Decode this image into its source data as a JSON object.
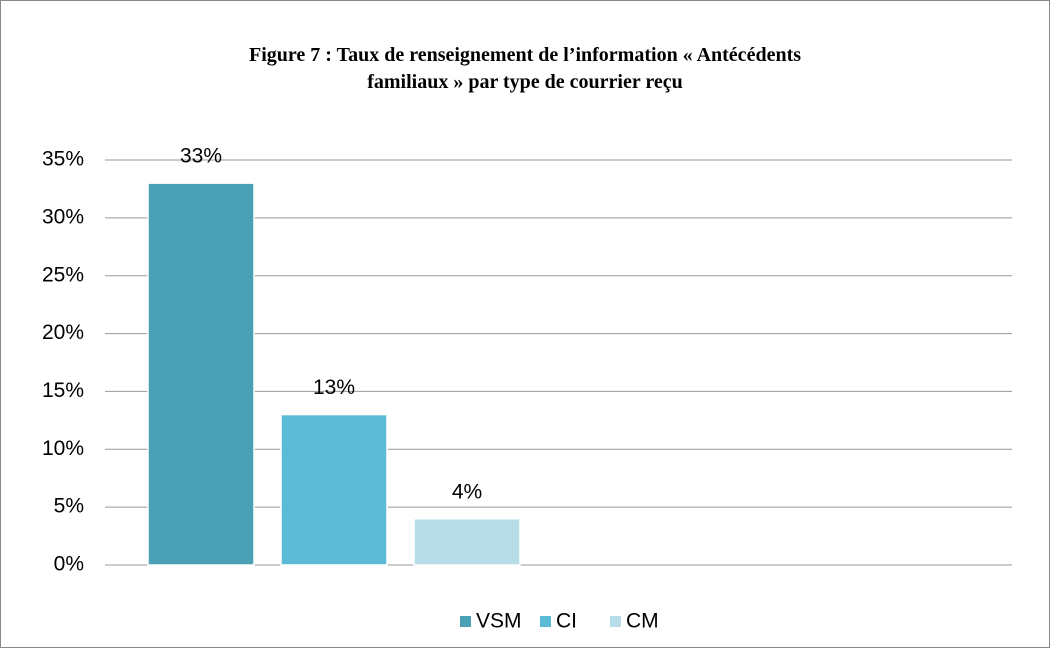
{
  "chart_data": {
    "type": "bar",
    "title": "Figure 7 : Taux de renseignement de l’information « Antécédents familiaux » par type de courrier reçu",
    "categories": [
      null
    ],
    "series": [
      {
        "name": "VSM",
        "color": "#4aa0b5",
        "values": [
          33
        ],
        "value_labels": [
          "33%"
        ]
      },
      {
        "name": "CI",
        "color": "#5bbad5",
        "values": [
          13
        ],
        "value_labels": [
          "13%"
        ]
      },
      {
        "name": "CM",
        "color": "#b7dde8",
        "values": [
          4
        ],
        "value_labels": [
          "4%"
        ]
      }
    ],
    "ylim": [
      0,
      35
    ],
    "yticks": [
      {
        "value": 0,
        "label": "0%"
      },
      {
        "value": 5,
        "label": "5%"
      },
      {
        "value": 10,
        "label": "10%"
      },
      {
        "value": 15,
        "label": "15%"
      },
      {
        "value": 20,
        "label": "20%"
      },
      {
        "value": 25,
        "label": "25%"
      },
      {
        "value": 30,
        "label": "30%"
      },
      {
        "value": 35,
        "label": "35%"
      }
    ],
    "grid": true,
    "legend": "bottom"
  }
}
